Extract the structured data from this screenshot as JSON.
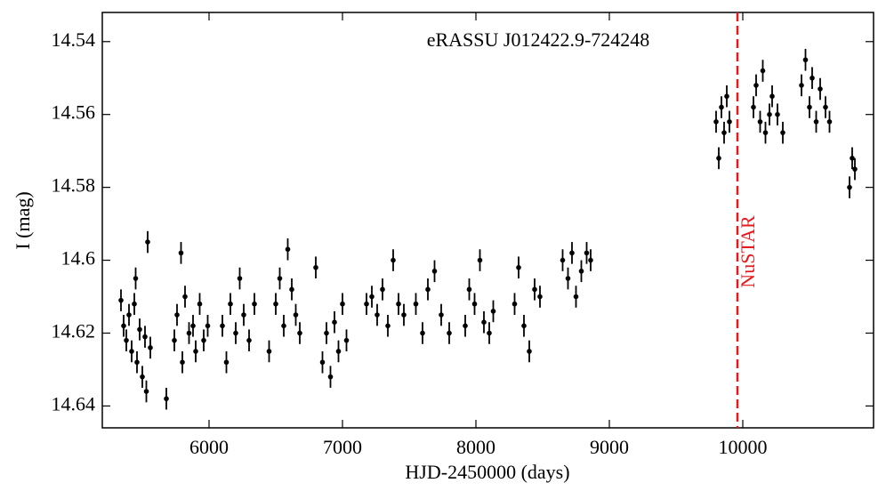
{
  "chart_data": {
    "type": "scatter",
    "annotation": "eRASSU J012422.9-724248",
    "xlabel": "HJD-2450000 (days)",
    "ylabel": "I (mag)",
    "xlim": [
      5200,
      10980
    ],
    "ylim": [
      14.532,
      14.646
    ],
    "invert_y": true,
    "xticks": [
      6000,
      7000,
      8000,
      9000,
      10000
    ],
    "yticks": [
      14.54,
      14.56,
      14.58,
      14.6,
      14.62,
      14.64
    ],
    "yerr": 0.003,
    "series": [
      {
        "color": "#000000",
        "x": [
          5340,
          5360,
          5380,
          5400,
          5420,
          5440,
          5450,
          5460,
          5480,
          5500,
          5520,
          5530,
          5540,
          5560,
          5680,
          5740,
          5760,
          5790,
          5800,
          5820,
          5850,
          5880,
          5900,
          5930,
          5960,
          5990,
          6100,
          6130,
          6160,
          6200,
          6230,
          6260,
          6300,
          6340,
          6450,
          6500,
          6530,
          6560,
          6590,
          6620,
          6650,
          6680,
          6800,
          6850,
          6880,
          6910,
          6940,
          6970,
          7000,
          7030,
          7180,
          7220,
          7260,
          7300,
          7340,
          7380,
          7420,
          7460,
          7550,
          7600,
          7640,
          7690,
          7740,
          7800,
          7920,
          7950,
          7990,
          8030,
          8060,
          8100,
          8130,
          8290,
          8320,
          8360,
          8400,
          8440,
          8480,
          8650,
          8690,
          8720,
          8750,
          8790,
          8830,
          8860,
          9800,
          9820,
          9840,
          9860,
          9880,
          9900,
          10080,
          10100,
          10130,
          10150,
          10170,
          10200,
          10220,
          10260,
          10300,
          10440,
          10470,
          10500,
          10520,
          10550,
          10580,
          10620,
          10650,
          10800,
          10820,
          10840
        ],
        "values": [
          14.611,
          14.618,
          14.622,
          14.615,
          14.625,
          14.612,
          14.605,
          14.628,
          14.619,
          14.632,
          14.621,
          14.636,
          14.595,
          14.624,
          14.638,
          14.622,
          14.615,
          14.598,
          14.628,
          14.61,
          14.62,
          14.618,
          14.625,
          14.612,
          14.622,
          14.618,
          14.618,
          14.628,
          14.612,
          14.62,
          14.605,
          14.615,
          14.622,
          14.612,
          14.625,
          14.612,
          14.605,
          14.618,
          14.597,
          14.608,
          14.615,
          14.62,
          14.602,
          14.628,
          14.62,
          14.632,
          14.617,
          14.625,
          14.612,
          14.622,
          14.612,
          14.61,
          14.615,
          14.608,
          14.618,
          14.6,
          14.612,
          14.615,
          14.612,
          14.62,
          14.608,
          14.603,
          14.615,
          14.62,
          14.618,
          14.608,
          14.612,
          14.6,
          14.617,
          14.62,
          14.614,
          14.612,
          14.602,
          14.618,
          14.625,
          14.608,
          14.61,
          14.6,
          14.605,
          14.598,
          14.61,
          14.603,
          14.598,
          14.6,
          14.562,
          14.572,
          14.558,
          14.565,
          14.555,
          14.562,
          14.558,
          14.552,
          14.562,
          14.548,
          14.565,
          14.56,
          14.555,
          14.56,
          14.565,
          14.552,
          14.545,
          14.558,
          14.55,
          14.562,
          14.553,
          14.558,
          14.562,
          14.58,
          14.572,
          14.575
        ]
      }
    ],
    "vline": {
      "x": 9960,
      "label": "NuSTAR",
      "color": "#e41a1c"
    }
  }
}
